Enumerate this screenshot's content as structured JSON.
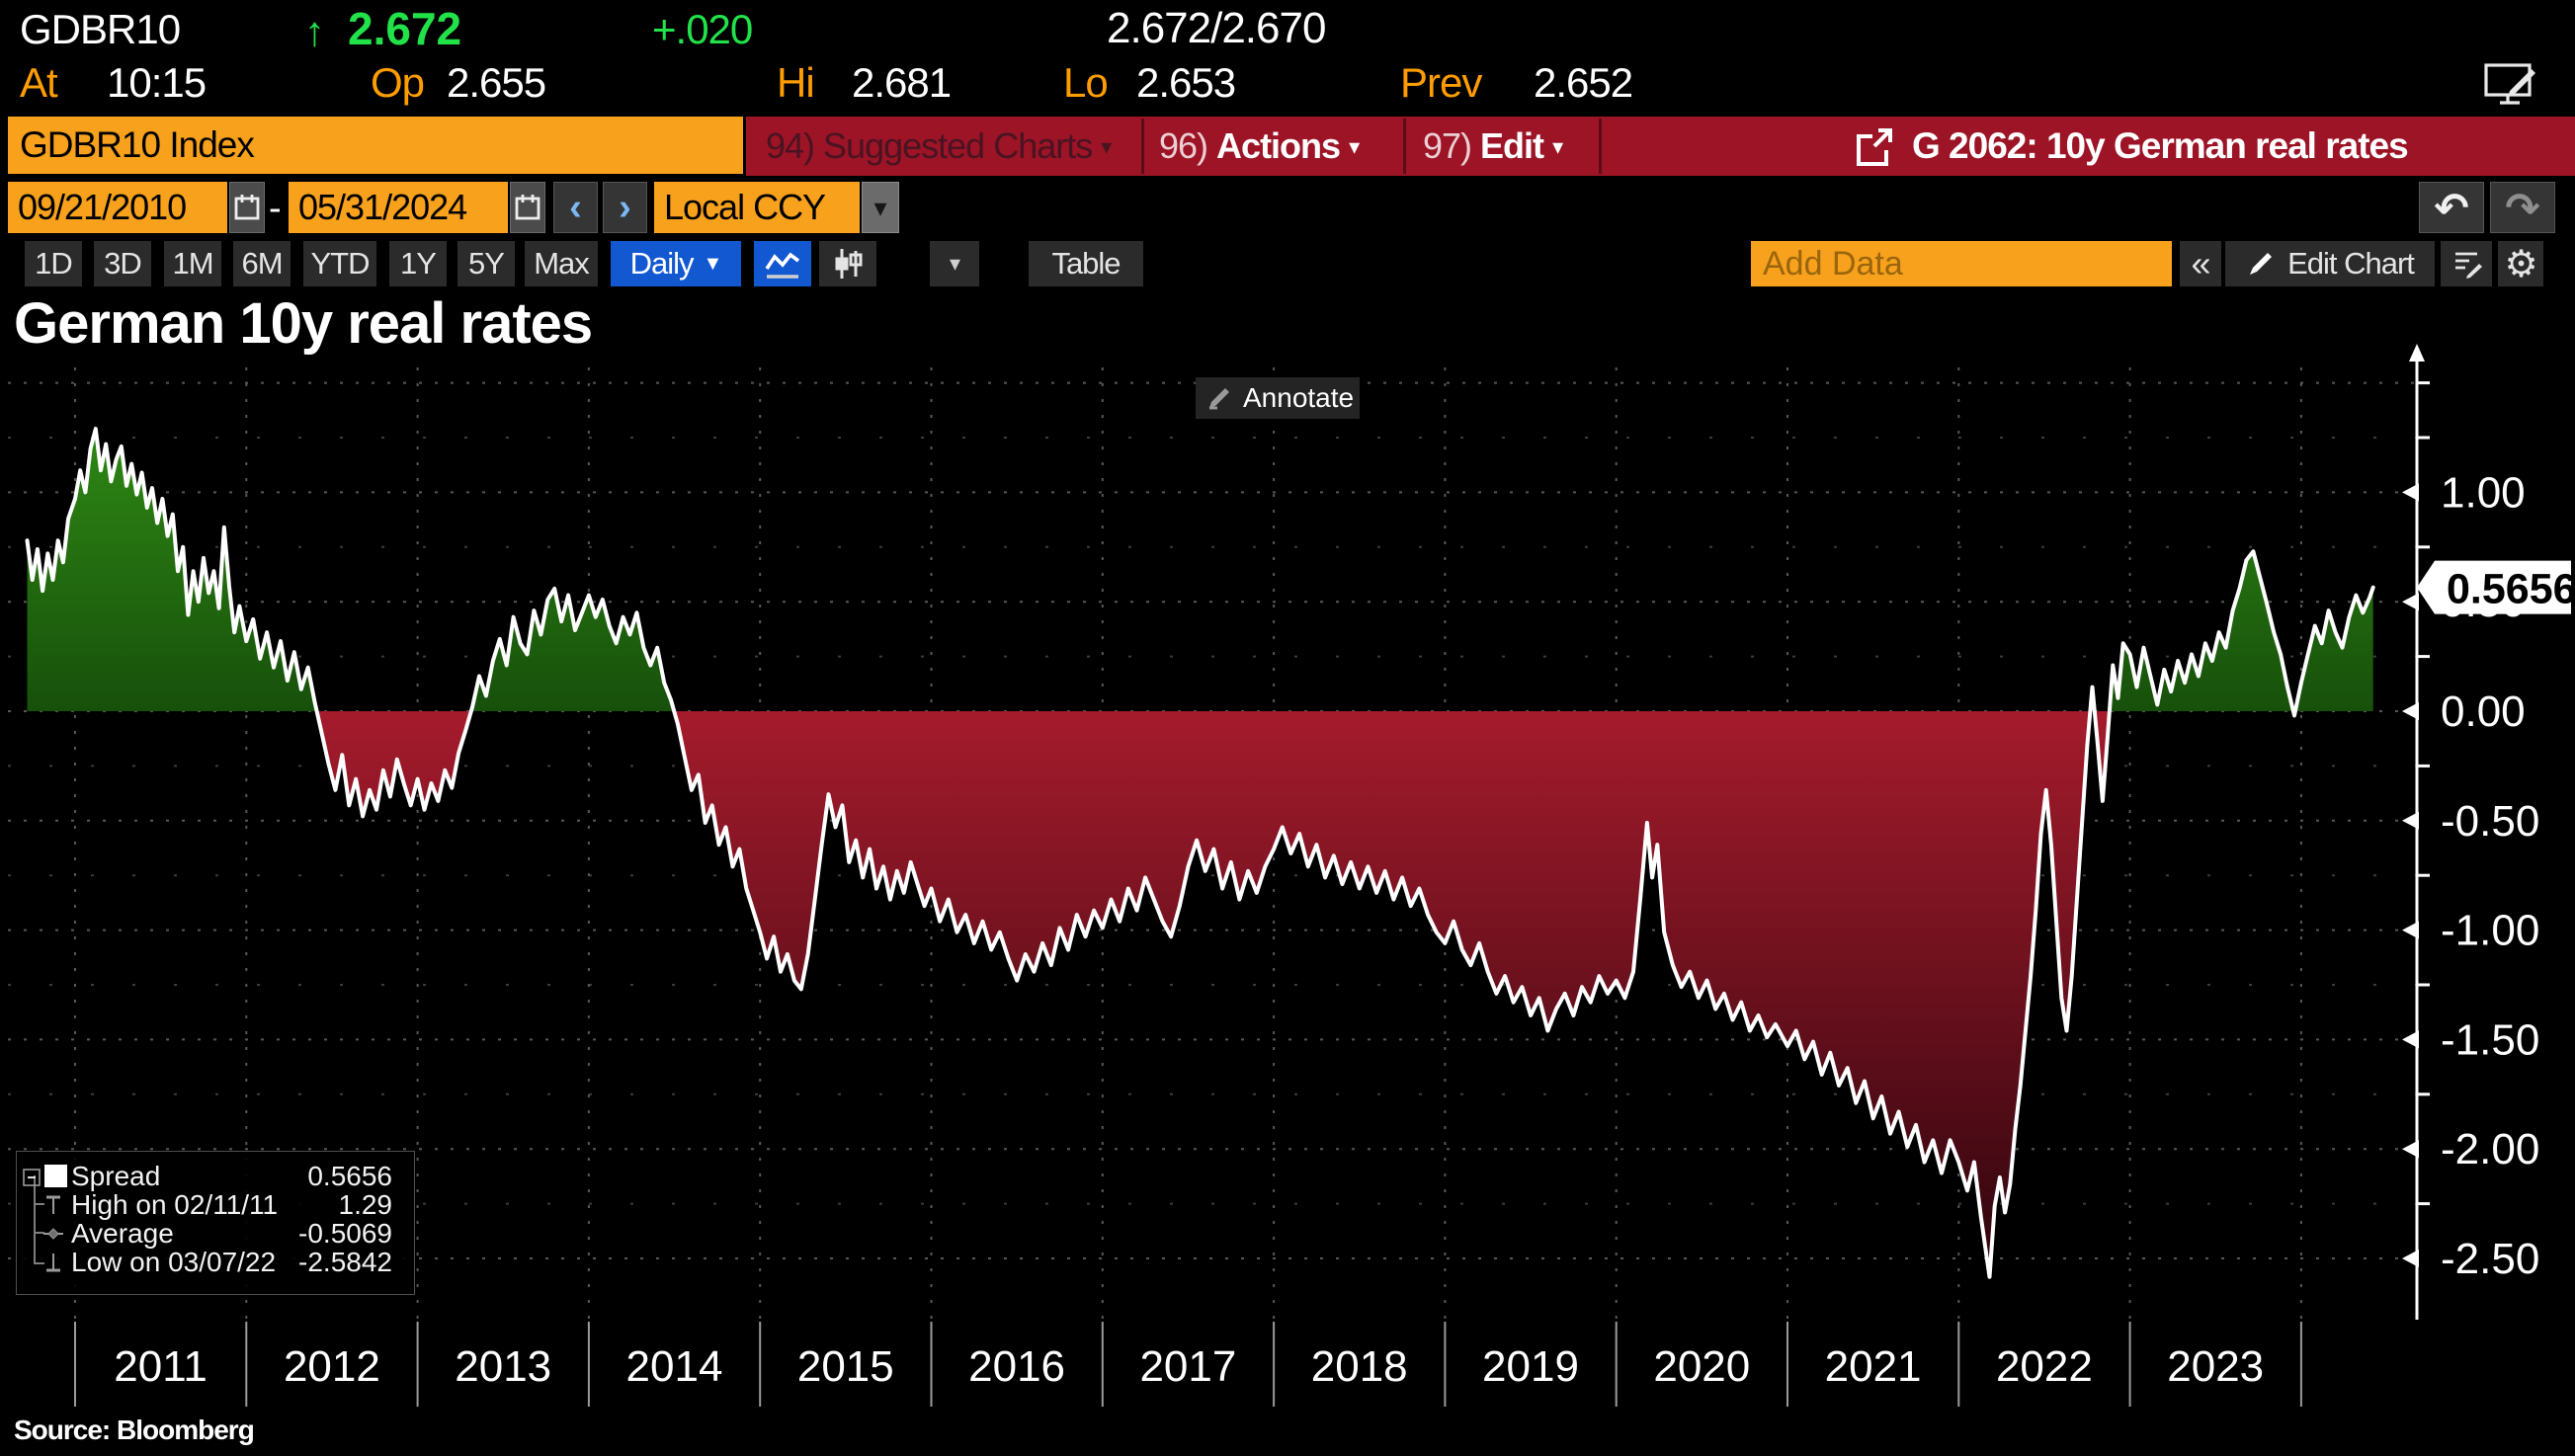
{
  "ticker": {
    "symbol": "GDBR10",
    "arrow_up": "↑",
    "last": "2.672",
    "change": "+.020",
    "bid_ask": "2.672/2.670",
    "at_label": "At",
    "at_value": "10:15",
    "op_label": "Op",
    "op_value": "2.655",
    "hi_label": "Hi",
    "hi_value": "2.681",
    "lo_label": "Lo",
    "lo_value": "2.653",
    "prev_label": "Prev",
    "prev_value": "2.652"
  },
  "menu_bar": {
    "security_field": "GDBR10 Index",
    "suggested_num": "94)",
    "suggested_label": "Suggested Charts",
    "actions_num": "96)",
    "actions_label": "Actions",
    "edit_num": "97)",
    "edit_label": "Edit",
    "dropdown_caret": "▾",
    "chart_tab_title": "G 2062: 10y German real rates"
  },
  "range_bar": {
    "start_date": "09/21/2010",
    "dash": "-",
    "end_date": "05/31/2024",
    "prev_arrow": "‹",
    "next_arrow": "›",
    "currency": "Local CCY",
    "currency_caret": "▾",
    "undo_icon": "↶",
    "redo_icon": "↷"
  },
  "toolbar": {
    "periods": [
      "1D",
      "3D",
      "1M",
      "6M",
      "YTD",
      "1Y",
      "5Y",
      "Max"
    ],
    "frequency_label": "Daily",
    "frequency_caret": "▼",
    "mini_caret": "▾",
    "table_label": "Table",
    "add_data_placeholder": "Add Data",
    "collapse_label": "«",
    "edit_chart_label": "Edit Chart",
    "gear_glyph": "⚙"
  },
  "chart": {
    "title": "German 10y real rates",
    "annotate_label": "Annotate",
    "source": "Source:  Bloomberg"
  },
  "legend": {
    "rows": [
      {
        "label": "Spread",
        "value": "0.5656"
      },
      {
        "label": "High on 02/11/11",
        "value": "1.29"
      },
      {
        "label": "Average",
        "value": "-0.5069"
      },
      {
        "label": "Low on 03/07/22",
        "value": "-2.5842"
      }
    ]
  },
  "chart_data": {
    "type": "area",
    "title": "German 10y real rates",
    "series_name": "Spread",
    "x_domain": [
      2010.72,
      2024.42
    ],
    "ylim": [
      -2.75,
      1.6
    ],
    "grid": true,
    "y_grid_major": [
      1.5,
      1.0,
      0.5,
      0.0,
      -0.5,
      -1.0,
      -1.5,
      -2.0,
      -2.5
    ],
    "y_grid_minor": [
      1.25,
      0.75,
      0.25,
      -0.25,
      -0.75,
      -1.25,
      -1.75,
      -2.25
    ],
    "y_tick_labels": [
      {
        "v": 1.0,
        "t": "1.00"
      },
      {
        "v": 0.5,
        "t": "0.50"
      },
      {
        "v": 0.0,
        "t": "0.00"
      },
      {
        "v": -0.5,
        "t": "-0.50"
      },
      {
        "v": -1.0,
        "t": "-1.00"
      },
      {
        "v": -1.5,
        "t": "-1.50"
      },
      {
        "v": -2.0,
        "t": "-2.00"
      },
      {
        "v": -2.5,
        "t": "-2.50"
      }
    ],
    "x_year_gridlines": [
      2011,
      2012,
      2013,
      2014,
      2015,
      2016,
      2017,
      2018,
      2019,
      2020,
      2021,
      2022,
      2023,
      2024
    ],
    "x_year_labels": [
      "2011",
      "2012",
      "2013",
      "2014",
      "2015",
      "2016",
      "2017",
      "2018",
      "2019",
      "2020",
      "2021",
      "2022",
      "2023"
    ],
    "last_value": 0.5656,
    "last_value_label": "0.5656",
    "high": {
      "date": "02/11/11",
      "value": 1.29
    },
    "low": {
      "date": "03/07/22",
      "value": -2.5842
    },
    "average": -0.5069,
    "colors": {
      "line": "#ffffff",
      "pos_top": "#2f8a15",
      "pos_bottom": "#17500b",
      "neg_top": "#a51b2c",
      "neg_bottom": "#2c050d",
      "grid_major": "#575757",
      "grid_minor": "#3c3c3c",
      "axis": "#ffffff",
      "year_sep": "#9a9a9a"
    },
    "points": [
      [
        2010.72,
        0.78
      ],
      [
        2010.75,
        0.6
      ],
      [
        2010.78,
        0.74
      ],
      [
        2010.81,
        0.55
      ],
      [
        2010.84,
        0.72
      ],
      [
        2010.87,
        0.6
      ],
      [
        2010.9,
        0.78
      ],
      [
        2010.93,
        0.68
      ],
      [
        2010.96,
        0.88
      ],
      [
        2011.0,
        0.97
      ],
      [
        2011.03,
        1.1
      ],
      [
        2011.06,
        1.0
      ],
      [
        2011.09,
        1.2
      ],
      [
        2011.12,
        1.29
      ],
      [
        2011.15,
        1.1
      ],
      [
        2011.18,
        1.22
      ],
      [
        2011.21,
        1.05
      ],
      [
        2011.24,
        1.15
      ],
      [
        2011.27,
        1.21
      ],
      [
        2011.3,
        1.03
      ],
      [
        2011.33,
        1.13
      ],
      [
        2011.36,
        0.99
      ],
      [
        2011.39,
        1.09
      ],
      [
        2011.42,
        0.93
      ],
      [
        2011.45,
        1.02
      ],
      [
        2011.48,
        0.86
      ],
      [
        2011.51,
        0.97
      ],
      [
        2011.54,
        0.8
      ],
      [
        2011.57,
        0.9
      ],
      [
        2011.6,
        0.64
      ],
      [
        2011.63,
        0.75
      ],
      [
        2011.66,
        0.44
      ],
      [
        2011.69,
        0.64
      ],
      [
        2011.72,
        0.5
      ],
      [
        2011.75,
        0.7
      ],
      [
        2011.78,
        0.54
      ],
      [
        2011.81,
        0.64
      ],
      [
        2011.84,
        0.47
      ],
      [
        2011.87,
        0.84
      ],
      [
        2011.9,
        0.57
      ],
      [
        2011.93,
        0.36
      ],
      [
        2011.96,
        0.48
      ],
      [
        2012.0,
        0.32
      ],
      [
        2012.04,
        0.42
      ],
      [
        2012.08,
        0.24
      ],
      [
        2012.12,
        0.36
      ],
      [
        2012.16,
        0.2
      ],
      [
        2012.2,
        0.32
      ],
      [
        2012.24,
        0.14
      ],
      [
        2012.28,
        0.27
      ],
      [
        2012.32,
        0.1
      ],
      [
        2012.36,
        0.2
      ],
      [
        2012.4,
        0.04
      ],
      [
        2012.44,
        -0.1
      ],
      [
        2012.48,
        -0.24
      ],
      [
        2012.52,
        -0.36
      ],
      [
        2012.56,
        -0.2
      ],
      [
        2012.6,
        -0.43
      ],
      [
        2012.64,
        -0.31
      ],
      [
        2012.68,
        -0.48
      ],
      [
        2012.72,
        -0.36
      ],
      [
        2012.76,
        -0.45
      ],
      [
        2012.8,
        -0.27
      ],
      [
        2012.84,
        -0.39
      ],
      [
        2012.88,
        -0.22
      ],
      [
        2012.92,
        -0.33
      ],
      [
        2012.96,
        -0.43
      ],
      [
        2013.0,
        -0.31
      ],
      [
        2013.04,
        -0.45
      ],
      [
        2013.08,
        -0.33
      ],
      [
        2013.12,
        -0.41
      ],
      [
        2013.16,
        -0.27
      ],
      [
        2013.2,
        -0.35
      ],
      [
        2013.24,
        -0.19
      ],
      [
        2013.28,
        -0.09
      ],
      [
        2013.32,
        0.02
      ],
      [
        2013.36,
        0.16
      ],
      [
        2013.4,
        0.07
      ],
      [
        2013.44,
        0.23
      ],
      [
        2013.48,
        0.33
      ],
      [
        2013.52,
        0.21
      ],
      [
        2013.56,
        0.43
      ],
      [
        2013.6,
        0.31
      ],
      [
        2013.64,
        0.26
      ],
      [
        2013.68,
        0.46
      ],
      [
        2013.72,
        0.35
      ],
      [
        2013.76,
        0.51
      ],
      [
        2013.8,
        0.56
      ],
      [
        2013.84,
        0.41
      ],
      [
        2013.88,
        0.53
      ],
      [
        2013.92,
        0.37
      ],
      [
        2013.96,
        0.45
      ],
      [
        2014.0,
        0.53
      ],
      [
        2014.04,
        0.43
      ],
      [
        2014.08,
        0.51
      ],
      [
        2014.12,
        0.39
      ],
      [
        2014.16,
        0.31
      ],
      [
        2014.2,
        0.43
      ],
      [
        2014.24,
        0.35
      ],
      [
        2014.28,
        0.45
      ],
      [
        2014.32,
        0.29
      ],
      [
        2014.36,
        0.21
      ],
      [
        2014.4,
        0.29
      ],
      [
        2014.44,
        0.13
      ],
      [
        2014.48,
        0.05
      ],
      [
        2014.52,
        -0.06
      ],
      [
        2014.56,
        -0.21
      ],
      [
        2014.6,
        -0.36
      ],
      [
        2014.64,
        -0.29
      ],
      [
        2014.68,
        -0.51
      ],
      [
        2014.72,
        -0.43
      ],
      [
        2014.76,
        -0.61
      ],
      [
        2014.8,
        -0.53
      ],
      [
        2014.84,
        -0.71
      ],
      [
        2014.88,
        -0.63
      ],
      [
        2014.92,
        -0.81
      ],
      [
        2014.96,
        -0.91
      ],
      [
        2015.0,
        -1.01
      ],
      [
        2015.04,
        -1.13
      ],
      [
        2015.08,
        -1.03
      ],
      [
        2015.12,
        -1.19
      ],
      [
        2015.16,
        -1.11
      ],
      [
        2015.2,
        -1.23
      ],
      [
        2015.24,
        -1.27
      ],
      [
        2015.28,
        -1.11
      ],
      [
        2015.32,
        -0.86
      ],
      [
        2015.36,
        -0.61
      ],
      [
        2015.4,
        -0.38
      ],
      [
        2015.44,
        -0.53
      ],
      [
        2015.48,
        -0.43
      ],
      [
        2015.52,
        -0.69
      ],
      [
        2015.56,
        -0.59
      ],
      [
        2015.6,
        -0.76
      ],
      [
        2015.64,
        -0.63
      ],
      [
        2015.68,
        -0.81
      ],
      [
        2015.72,
        -0.71
      ],
      [
        2015.76,
        -0.86
      ],
      [
        2015.8,
        -0.73
      ],
      [
        2015.84,
        -0.83
      ],
      [
        2015.88,
        -0.69
      ],
      [
        2015.92,
        -0.79
      ],
      [
        2015.96,
        -0.89
      ],
      [
        2016.0,
        -0.81
      ],
      [
        2016.05,
        -0.96
      ],
      [
        2016.1,
        -0.86
      ],
      [
        2016.15,
        -1.01
      ],
      [
        2016.2,
        -0.93
      ],
      [
        2016.25,
        -1.06
      ],
      [
        2016.3,
        -0.96
      ],
      [
        2016.35,
        -1.09
      ],
      [
        2016.4,
        -1.01
      ],
      [
        2016.45,
        -1.13
      ],
      [
        2016.5,
        -1.23
      ],
      [
        2016.55,
        -1.11
      ],
      [
        2016.6,
        -1.19
      ],
      [
        2016.65,
        -1.06
      ],
      [
        2016.7,
        -1.16
      ],
      [
        2016.75,
        -0.99
      ],
      [
        2016.8,
        -1.09
      ],
      [
        2016.85,
        -0.93
      ],
      [
        2016.9,
        -1.03
      ],
      [
        2016.95,
        -0.91
      ],
      [
        2017.0,
        -0.99
      ],
      [
        2017.05,
        -0.86
      ],
      [
        2017.1,
        -0.96
      ],
      [
        2017.15,
        -0.81
      ],
      [
        2017.2,
        -0.91
      ],
      [
        2017.25,
        -0.76
      ],
      [
        2017.3,
        -0.86
      ],
      [
        2017.35,
        -0.96
      ],
      [
        2017.4,
        -1.03
      ],
      [
        2017.45,
        -0.89
      ],
      [
        2017.5,
        -0.71
      ],
      [
        2017.55,
        -0.59
      ],
      [
        2017.6,
        -0.73
      ],
      [
        2017.65,
        -0.63
      ],
      [
        2017.7,
        -0.81
      ],
      [
        2017.75,
        -0.69
      ],
      [
        2017.8,
        -0.86
      ],
      [
        2017.85,
        -0.73
      ],
      [
        2017.9,
        -0.83
      ],
      [
        2017.95,
        -0.71
      ],
      [
        2018.0,
        -0.63
      ],
      [
        2018.05,
        -0.53
      ],
      [
        2018.1,
        -0.65
      ],
      [
        2018.15,
        -0.56
      ],
      [
        2018.2,
        -0.71
      ],
      [
        2018.25,
        -0.61
      ],
      [
        2018.3,
        -0.76
      ],
      [
        2018.35,
        -0.66
      ],
      [
        2018.4,
        -0.79
      ],
      [
        2018.45,
        -0.69
      ],
      [
        2018.5,
        -0.81
      ],
      [
        2018.55,
        -0.71
      ],
      [
        2018.6,
        -0.83
      ],
      [
        2018.65,
        -0.73
      ],
      [
        2018.7,
        -0.86
      ],
      [
        2018.75,
        -0.76
      ],
      [
        2018.8,
        -0.89
      ],
      [
        2018.85,
        -0.81
      ],
      [
        2018.9,
        -0.93
      ],
      [
        2018.95,
        -1.01
      ],
      [
        2019.0,
        -1.06
      ],
      [
        2019.05,
        -0.96
      ],
      [
        2019.1,
        -1.09
      ],
      [
        2019.15,
        -1.16
      ],
      [
        2019.2,
        -1.06
      ],
      [
        2019.25,
        -1.19
      ],
      [
        2019.3,
        -1.29
      ],
      [
        2019.35,
        -1.21
      ],
      [
        2019.4,
        -1.33
      ],
      [
        2019.45,
        -1.26
      ],
      [
        2019.5,
        -1.39
      ],
      [
        2019.55,
        -1.31
      ],
      [
        2019.6,
        -1.46
      ],
      [
        2019.65,
        -1.36
      ],
      [
        2019.7,
        -1.29
      ],
      [
        2019.75,
        -1.39
      ],
      [
        2019.8,
        -1.26
      ],
      [
        2019.85,
        -1.33
      ],
      [
        2019.9,
        -1.21
      ],
      [
        2019.95,
        -1.29
      ],
      [
        2020.0,
        -1.23
      ],
      [
        2020.05,
        -1.31
      ],
      [
        2020.1,
        -1.19
      ],
      [
        2020.14,
        -0.86
      ],
      [
        2020.18,
        -0.51
      ],
      [
        2020.21,
        -0.76
      ],
      [
        2020.24,
        -0.61
      ],
      [
        2020.28,
        -1.01
      ],
      [
        2020.33,
        -1.16
      ],
      [
        2020.38,
        -1.26
      ],
      [
        2020.43,
        -1.19
      ],
      [
        2020.48,
        -1.31
      ],
      [
        2020.53,
        -1.23
      ],
      [
        2020.58,
        -1.36
      ],
      [
        2020.63,
        -1.29
      ],
      [
        2020.68,
        -1.41
      ],
      [
        2020.73,
        -1.33
      ],
      [
        2020.78,
        -1.46
      ],
      [
        2020.83,
        -1.39
      ],
      [
        2020.88,
        -1.49
      ],
      [
        2020.93,
        -1.43
      ],
      [
        2021.0,
        -1.53
      ],
      [
        2021.05,
        -1.46
      ],
      [
        2021.1,
        -1.59
      ],
      [
        2021.15,
        -1.51
      ],
      [
        2021.2,
        -1.66
      ],
      [
        2021.25,
        -1.56
      ],
      [
        2021.3,
        -1.71
      ],
      [
        2021.35,
        -1.63
      ],
      [
        2021.4,
        -1.79
      ],
      [
        2021.45,
        -1.69
      ],
      [
        2021.5,
        -1.86
      ],
      [
        2021.55,
        -1.76
      ],
      [
        2021.6,
        -1.93
      ],
      [
        2021.65,
        -1.83
      ],
      [
        2021.7,
        -1.99
      ],
      [
        2021.75,
        -1.89
      ],
      [
        2021.8,
        -2.06
      ],
      [
        2021.85,
        -1.96
      ],
      [
        2021.9,
        -2.11
      ],
      [
        2021.95,
        -1.96
      ],
      [
        2022.0,
        -2.06
      ],
      [
        2022.05,
        -2.19
      ],
      [
        2022.09,
        -2.06
      ],
      [
        2022.13,
        -2.31
      ],
      [
        2022.18,
        -2.5842
      ],
      [
        2022.21,
        -2.26
      ],
      [
        2022.24,
        -2.13
      ],
      [
        2022.27,
        -2.29
      ],
      [
        2022.3,
        -2.16
      ],
      [
        2022.33,
        -1.91
      ],
      [
        2022.36,
        -1.71
      ],
      [
        2022.39,
        -1.46
      ],
      [
        2022.42,
        -1.21
      ],
      [
        2022.45,
        -0.91
      ],
      [
        2022.48,
        -0.56
      ],
      [
        2022.51,
        -0.36
      ],
      [
        2022.54,
        -0.61
      ],
      [
        2022.57,
        -0.96
      ],
      [
        2022.6,
        -1.31
      ],
      [
        2022.63,
        -1.46
      ],
      [
        2022.66,
        -1.21
      ],
      [
        2022.69,
        -0.86
      ],
      [
        2022.72,
        -0.51
      ],
      [
        2022.75,
        -0.16
      ],
      [
        2022.78,
        0.11
      ],
      [
        2022.81,
        -0.14
      ],
      [
        2022.84,
        -0.41
      ],
      [
        2022.87,
        -0.11
      ],
      [
        2022.9,
        0.21
      ],
      [
        2022.93,
        0.06
      ],
      [
        2022.96,
        0.31
      ],
      [
        2023.0,
        0.26
      ],
      [
        2023.04,
        0.11
      ],
      [
        2023.08,
        0.29
      ],
      [
        2023.12,
        0.16
      ],
      [
        2023.16,
        0.03
      ],
      [
        2023.2,
        0.19
      ],
      [
        2023.24,
        0.09
      ],
      [
        2023.28,
        0.23
      ],
      [
        2023.32,
        0.13
      ],
      [
        2023.36,
        0.26
      ],
      [
        2023.4,
        0.16
      ],
      [
        2023.44,
        0.31
      ],
      [
        2023.48,
        0.23
      ],
      [
        2023.52,
        0.36
      ],
      [
        2023.56,
        0.29
      ],
      [
        2023.6,
        0.46
      ],
      [
        2023.64,
        0.56
      ],
      [
        2023.68,
        0.69
      ],
      [
        2023.72,
        0.73
      ],
      [
        2023.76,
        0.61
      ],
      [
        2023.8,
        0.49
      ],
      [
        2023.84,
        0.36
      ],
      [
        2023.88,
        0.26
      ],
      [
        2023.92,
        0.11
      ],
      [
        2023.96,
        -0.02
      ],
      [
        2024.0,
        0.13
      ],
      [
        2024.04,
        0.26
      ],
      [
        2024.08,
        0.39
      ],
      [
        2024.12,
        0.31
      ],
      [
        2024.16,
        0.46
      ],
      [
        2024.2,
        0.36
      ],
      [
        2024.24,
        0.29
      ],
      [
        2024.28,
        0.43
      ],
      [
        2024.32,
        0.53
      ],
      [
        2024.36,
        0.45
      ],
      [
        2024.4,
        0.52
      ],
      [
        2024.42,
        0.5656
      ]
    ]
  }
}
